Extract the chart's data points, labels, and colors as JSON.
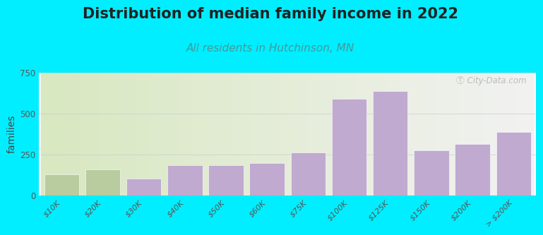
{
  "title": "Distribution of median family income in 2022",
  "subtitle": "All residents in Hutchinson, MN",
  "ylabel": "families",
  "categories": [
    "$10K",
    "$20K",
    "$30K",
    "$40K",
    "$50K",
    "$60K",
    "$75K",
    "$100K",
    "$125K",
    "$150K",
    "$200K",
    "> $200K"
  ],
  "values": [
    130,
    160,
    100,
    185,
    185,
    195,
    260,
    590,
    635,
    275,
    315,
    385
  ],
  "bar_color": "#c0aad0",
  "bar_color_first2": "#b8cca0",
  "background_color": "#00eeff",
  "plot_bg_left": "#d8e8c0",
  "plot_bg_right": "#f2f2f2",
  "title_fontsize": 15,
  "subtitle_fontsize": 11,
  "title_color": "#222222",
  "subtitle_color": "#449999",
  "ylabel_fontsize": 10,
  "ylim": [
    0,
    750
  ],
  "yticks": [
    0,
    250,
    500,
    750
  ],
  "watermark": "Ⓣ City-Data.com",
  "watermark_color": "#aaaaaa"
}
